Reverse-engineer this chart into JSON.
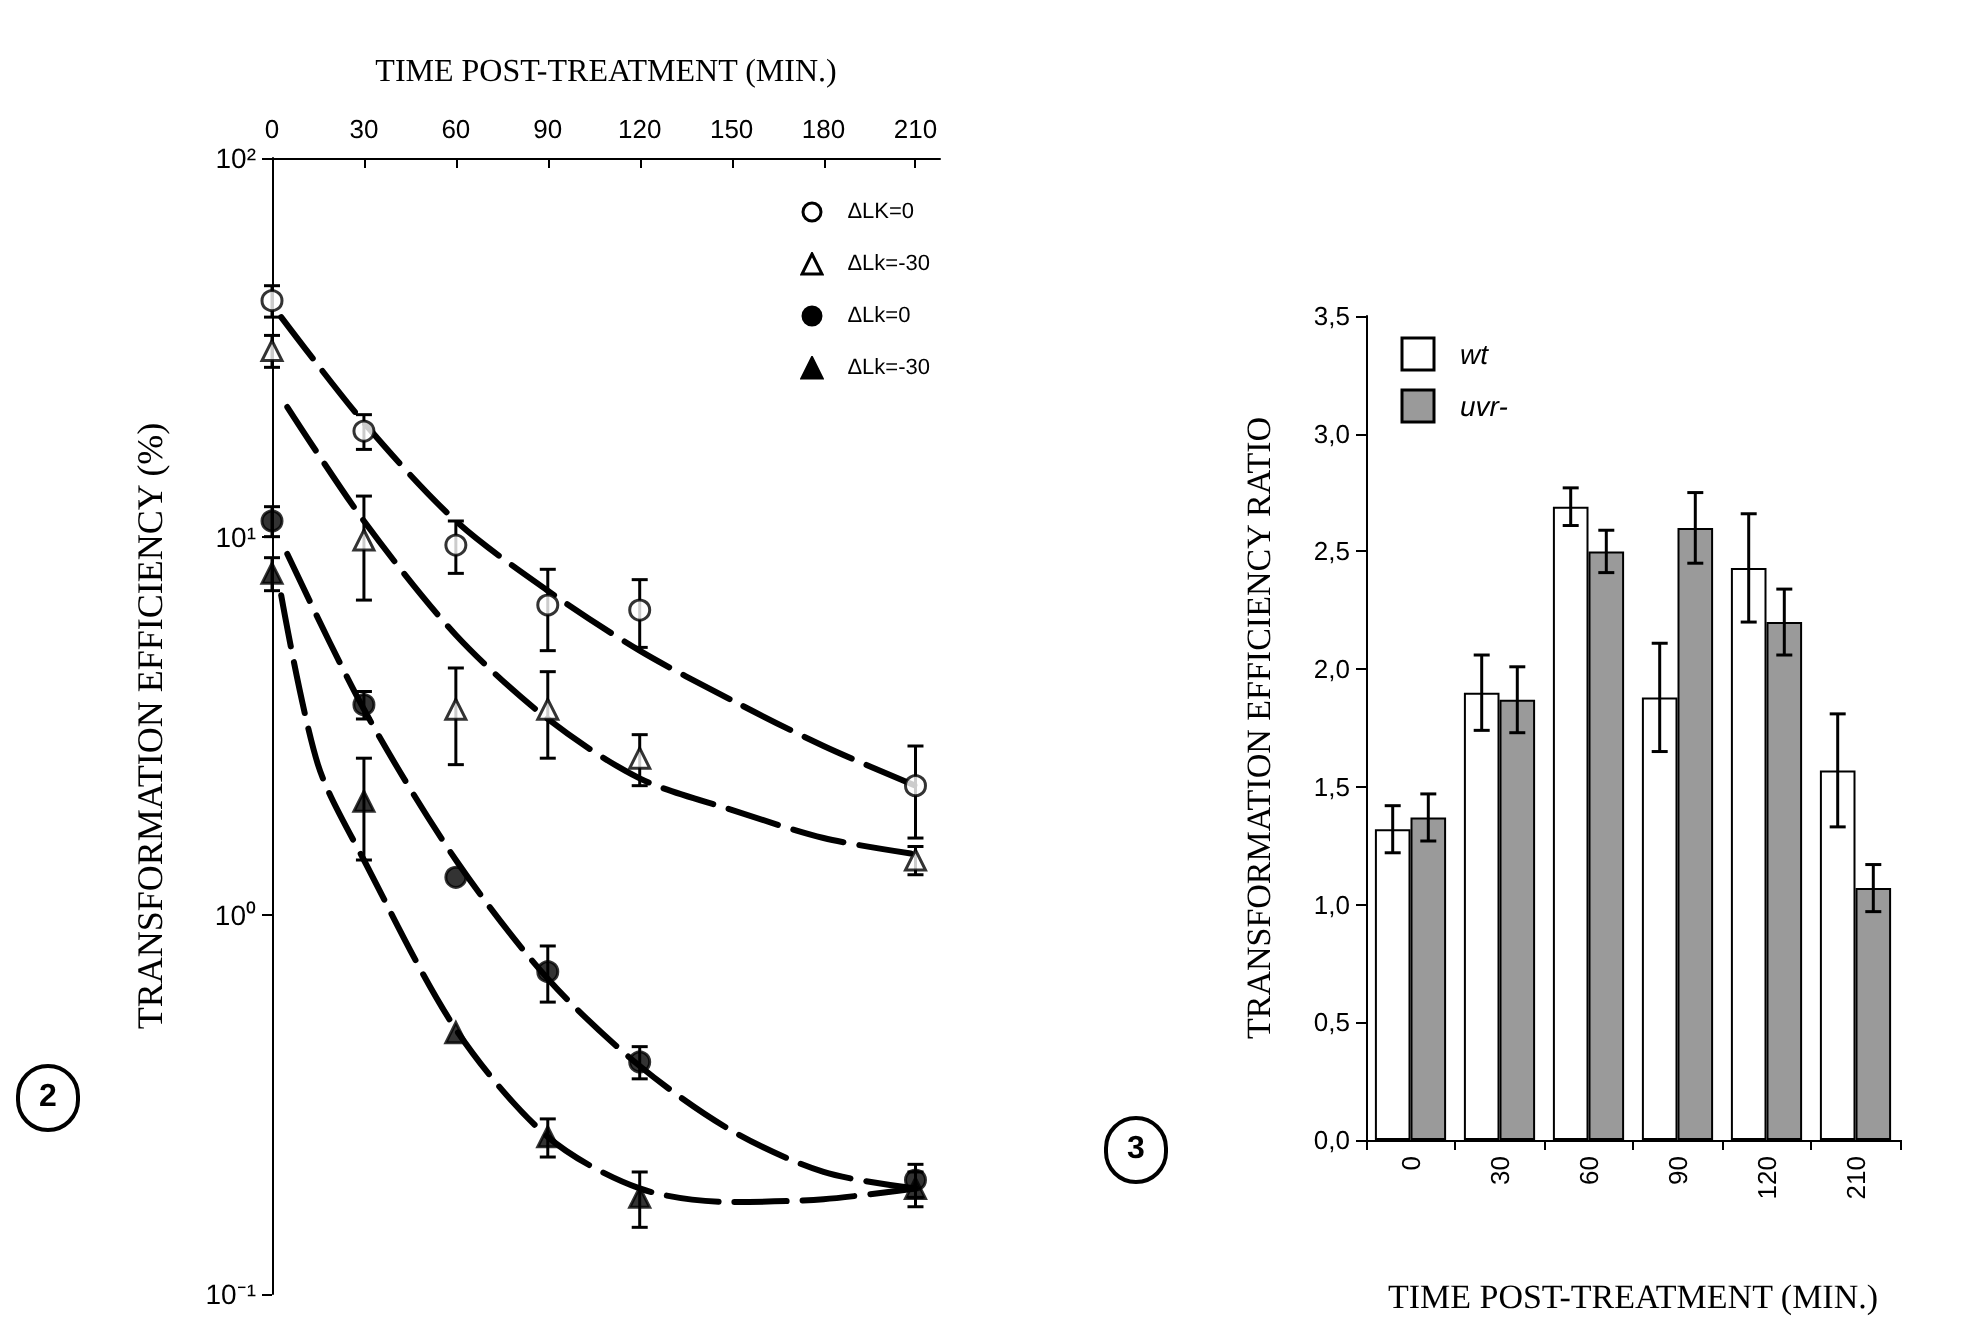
{
  "chart_data": [
    {
      "type": "scatter",
      "xlabel": "TIME POST-TREATMENT (MIN.)",
      "ylabel": "TRANSFORMATION EFFICIENCY (%)",
      "xlim": [
        0,
        218
      ],
      "xticks": [
        0,
        30,
        60,
        90,
        120,
        150,
        180,
        210
      ],
      "ylim": [
        0.1,
        100
      ],
      "yticks": [
        {
          "value": 0.1,
          "label": "10⁻¹"
        },
        {
          "value": 1,
          "label": "10⁰"
        },
        {
          "value": 10,
          "label": "10¹"
        },
        {
          "value": 100,
          "label": "10²"
        }
      ],
      "log": "y",
      "legend": "top right",
      "annotations": [
        "2"
      ],
      "series": [
        {
          "name": "ΔLK=0",
          "color": "#ffffff",
          "marker": "circle",
          "x": [
            0,
            30,
            60,
            90,
            120,
            210
          ],
          "values": [
            42,
            19,
            9.5,
            6.6,
            6.4,
            2.2
          ],
          "errors": [
            4,
            2,
            1.5,
            1.6,
            1.3,
            0.6
          ]
        },
        {
          "name": "ΔLk=-30",
          "color": "#ffffff",
          "marker": "triangle",
          "x": [
            0,
            30,
            60,
            90,
            120,
            210
          ],
          "values": [
            31,
            9.8,
            3.5,
            3.5,
            2.6,
            1.4
          ],
          "errors": [
            3,
            3,
            1,
            0.9,
            0.4,
            0.12
          ]
        },
        {
          "name": "ΔLk=0",
          "color": "#000000",
          "marker": "circle",
          "x": [
            0,
            30,
            60,
            90,
            120,
            210
          ],
          "values": [
            11,
            3.6,
            1.26,
            0.71,
            0.41,
            0.2
          ],
          "errors": [
            1,
            0.3,
            null,
            0.12,
            0.04,
            0.02
          ]
        },
        {
          "name": "ΔLk=-30",
          "color": "#000000",
          "marker": "triangle",
          "x": [
            0,
            30,
            60,
            90,
            120,
            210
          ],
          "values": [
            8,
            2,
            0.49,
            0.26,
            0.18,
            0.19
          ],
          "errors": [
            0.8,
            0.6,
            null,
            0.03,
            0.03,
            0.02
          ]
        },
        {
          "type": "line",
          "color": "#000000",
          "marker": "none",
          "line_style": "dashed",
          "x": [
            3,
            30,
            60,
            90,
            120,
            150,
            180,
            210
          ],
          "values": [
            38,
            20,
            11,
            7.2,
            5,
            3.7,
            2.8,
            2.2
          ]
        },
        {
          "type": "line",
          "color": "#000000",
          "marker": "none",
          "line_style": "dashed",
          "x": [
            5,
            30,
            60,
            90,
            120,
            150,
            180,
            210
          ],
          "values": [
            22,
            11,
            5.5,
            3.3,
            2.3,
            1.9,
            1.6,
            1.45
          ]
        },
        {
          "type": "line",
          "color": "#000000",
          "marker": "none",
          "line_style": "dashed",
          "x": [
            5,
            30,
            60,
            90,
            120,
            150,
            180,
            210
          ],
          "values": [
            9,
            3.5,
            1.4,
            0.68,
            0.4,
            0.27,
            0.21,
            0.19
          ]
        },
        {
          "type": "line",
          "color": "#000000",
          "marker": "none",
          "line_style": "dashed",
          "x": [
            3,
            15,
            30,
            60,
            90,
            120,
            150,
            180,
            210
          ],
          "values": [
            7,
            2.5,
            1.4,
            0.5,
            0.26,
            0.19,
            0.175,
            0.178,
            0.19
          ]
        }
      ]
    },
    {
      "type": "bar",
      "xlabel": "TIME POST-TREATMENT (MIN.)",
      "ylabel": "TRANSFORMATION EFFICIENCY RATIO",
      "categories": [
        "0",
        "30",
        "60",
        "90",
        "120",
        "210"
      ],
      "ylim": [
        0,
        3.5
      ],
      "yticks": [
        {
          "value": 0,
          "label": "0,0"
        },
        {
          "value": 0.5,
          "label": "0,5"
        },
        {
          "value": 1,
          "label": "1,0"
        },
        {
          "value": 1.5,
          "label": "1,5"
        },
        {
          "value": 2,
          "label": "2,0"
        },
        {
          "value": 2.5,
          "label": "2,5"
        },
        {
          "value": 3,
          "label": "3,0"
        },
        {
          "value": 3.5,
          "label": "3,5"
        }
      ],
      "legend": "top left",
      "annotations": [
        "3"
      ],
      "series": [
        {
          "name": "wt",
          "color": "#ffffff",
          "values": [
            1.32,
            1.9,
            2.69,
            1.88,
            2.43,
            1.57
          ],
          "errors": [
            0.1,
            0.16,
            0.08,
            0.23,
            0.23,
            0.24
          ]
        },
        {
          "name": "uvr-",
          "color": "#9a9a9a",
          "values": [
            1.37,
            1.87,
            2.5,
            2.6,
            2.2,
            1.07
          ],
          "errors": [
            0.1,
            0.14,
            0.09,
            0.15,
            0.14,
            0.1
          ]
        }
      ]
    }
  ]
}
